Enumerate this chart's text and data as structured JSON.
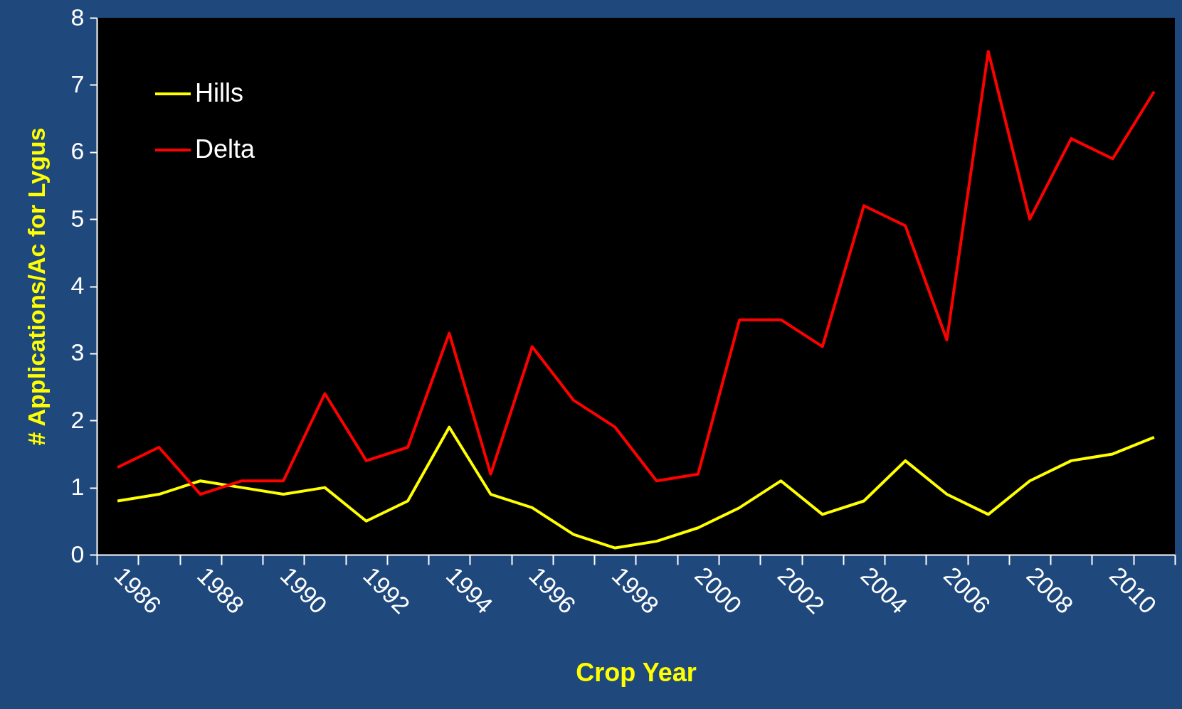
{
  "chart_data": {
    "type": "line",
    "xlabel": "Crop Year",
    "ylabel": "# Applications/Ac for Lygus",
    "categories": [
      "1986",
      null,
      "1988",
      null,
      "1990",
      null,
      "1992",
      null,
      "1994",
      null,
      "1996",
      null,
      "1998",
      null,
      "2000",
      null,
      "2002",
      null,
      "2004",
      null,
      "2006",
      null,
      "2008",
      null,
      "2010",
      null
    ],
    "series": [
      {
        "name": "Hills",
        "color": "#ffff00",
        "values": [
          0.8,
          0.9,
          1.1,
          1.0,
          0.9,
          1.0,
          0.5,
          0.8,
          1.9,
          0.9,
          0.7,
          0.3,
          0.1,
          0.2,
          0.4,
          0.7,
          1.1,
          0.6,
          0.8,
          1.4,
          0.9,
          0.6,
          1.1,
          1.4,
          1.5,
          1.75
        ]
      },
      {
        "name": "Delta",
        "color": "#ff0000",
        "values": [
          1.3,
          1.6,
          0.9,
          1.1,
          1.1,
          2.4,
          1.4,
          1.6,
          3.3,
          1.2,
          3.1,
          2.3,
          1.9,
          1.1,
          1.2,
          3.5,
          3.5,
          3.1,
          5.2,
          4.9,
          3.2,
          7.5,
          5.0,
          6.2,
          5.9,
          6.9
        ]
      }
    ],
    "ylim": [
      0,
      8
    ],
    "yticks": [
      0,
      1,
      2,
      3,
      4,
      5,
      6,
      7,
      8
    ],
    "legend": "top left"
  }
}
